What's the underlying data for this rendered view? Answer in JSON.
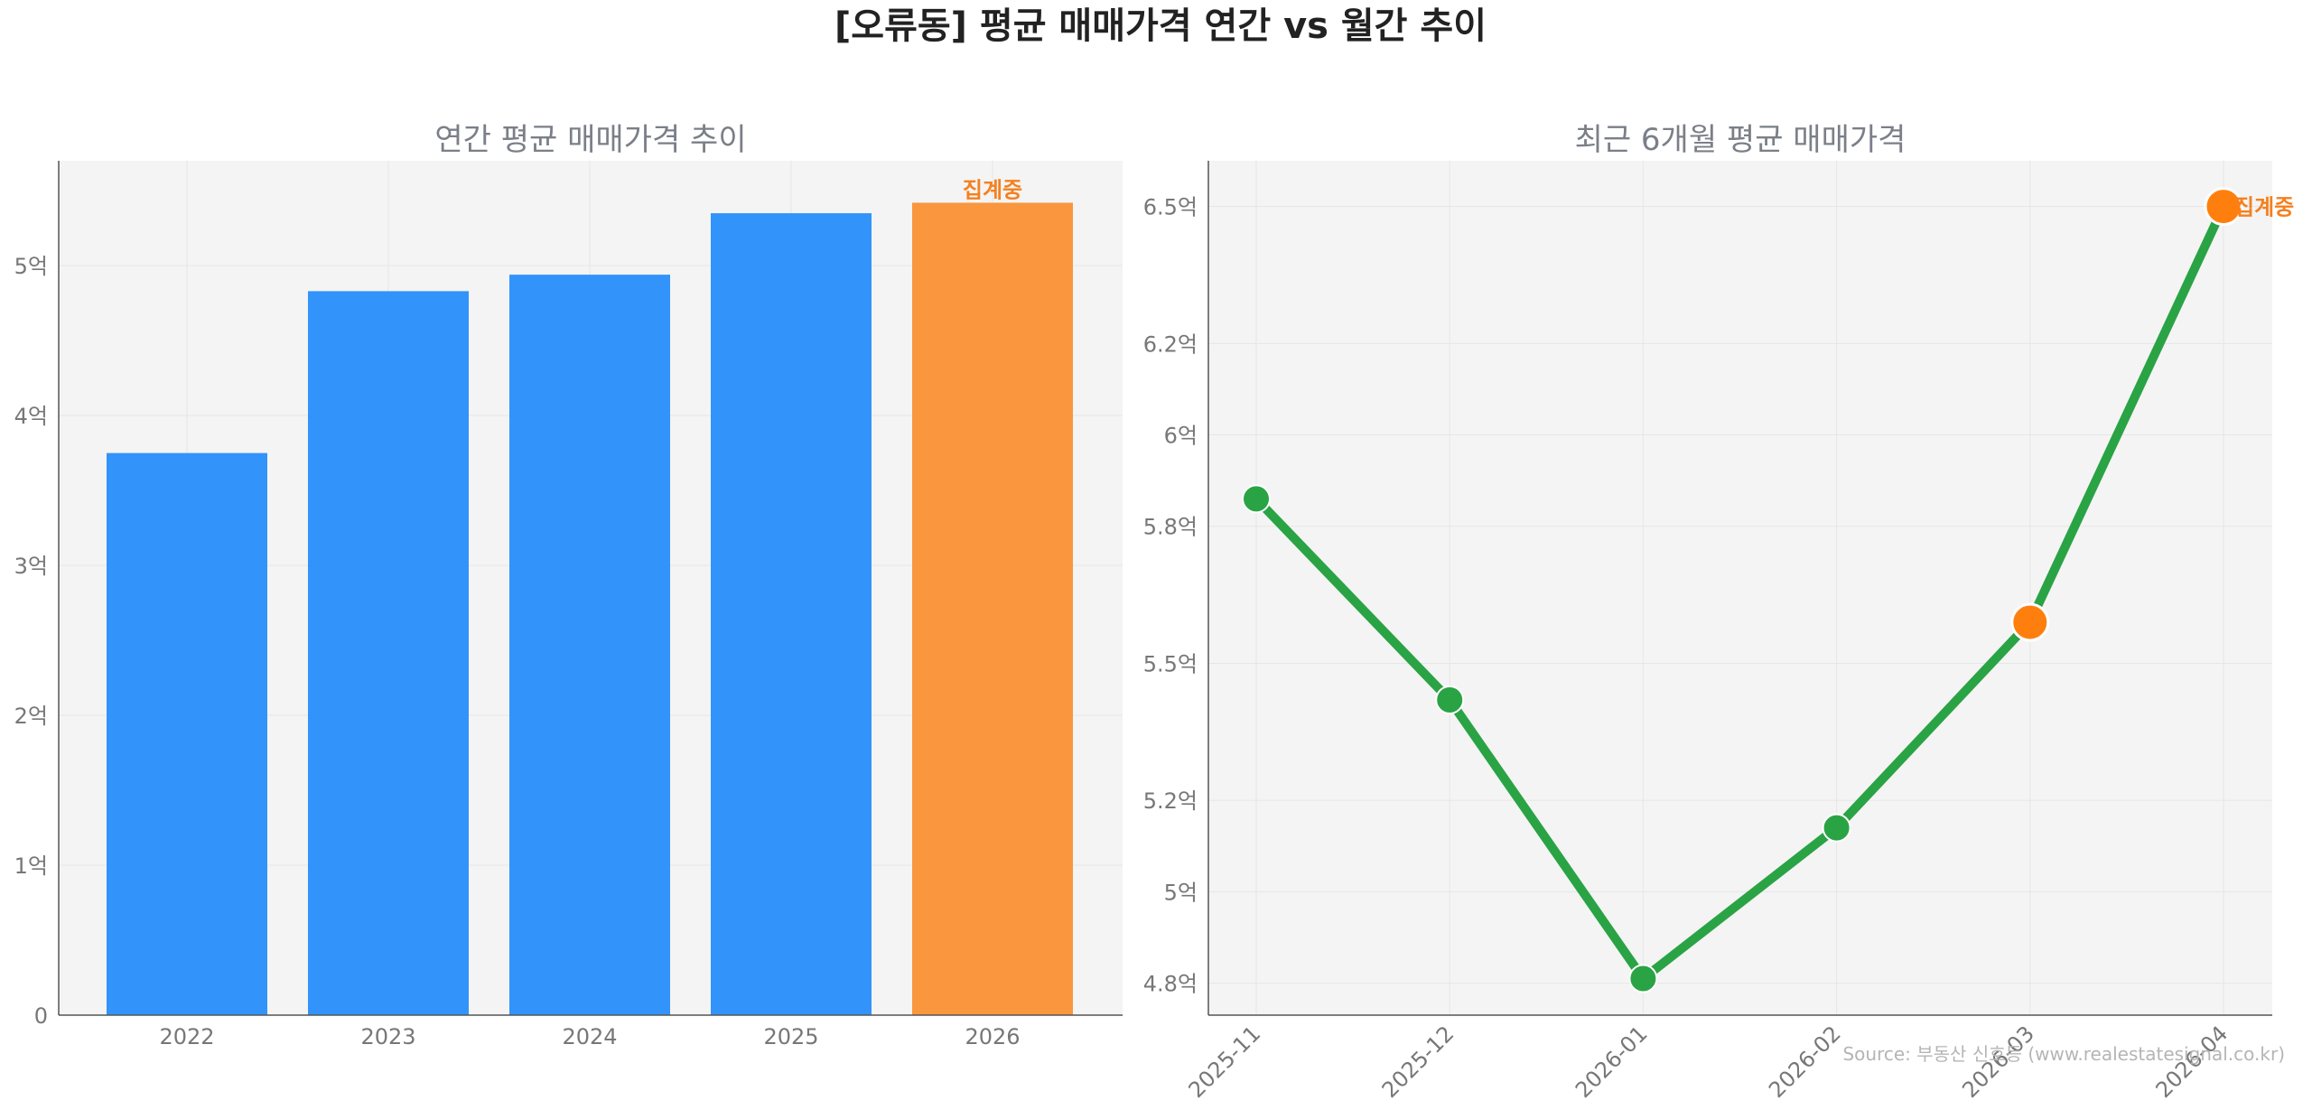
{
  "title": "[오류동] 평균 매매가격 연간 vs 월간 추이",
  "source": "Source: 부동산 신호등 (www.realestatesignal.co.kr)",
  "colors": {
    "bar": "#3293fb",
    "bar_partial": "#f9963e",
    "line": "#2aa345",
    "marker": "#2aa345",
    "marker_highlight": "#ff7f0e",
    "annotation": "#f4801f",
    "panel_bg": "#f4f4f4",
    "tick": "#777777",
    "subtitle": "#7a7f88",
    "title": "#222222"
  },
  "chart_data": [
    {
      "type": "bar",
      "title": "연간 평균 매매가격 추이",
      "xlabel": "",
      "ylabel": "",
      "categories": [
        "2022",
        "2023",
        "2024",
        "2025",
        "2026"
      ],
      "values": [
        3.75,
        4.83,
        4.94,
        5.35,
        5.42
      ],
      "yticks": [
        0,
        1,
        2,
        3,
        4,
        5
      ],
      "ytick_labels": [
        "0",
        "1억",
        "2억",
        "3억",
        "4억",
        "5억"
      ],
      "ylim": [
        0,
        5.7
      ],
      "partial_index": 4,
      "annotation": "집계중",
      "grid": true
    },
    {
      "type": "line",
      "title": "최근 6개월 평균 매매가격",
      "xlabel": "",
      "ylabel": "",
      "x": [
        "2025-11",
        "2025-12",
        "2026-01",
        "2026-02",
        "2026-03",
        "2026-04"
      ],
      "values": [
        5.86,
        5.42,
        4.81,
        5.14,
        5.59,
        6.5
      ],
      "highlight_indices": [
        4,
        5
      ],
      "yticks": [
        4.8,
        5.0,
        5.2,
        5.5,
        5.8,
        6.0,
        6.2,
        6.5
      ],
      "ytick_labels": [
        "4.8억",
        "5억",
        "5.2억",
        "5.5억",
        "5.8억",
        "6억",
        "6.2억",
        "6.5억"
      ],
      "ylim": [
        4.73,
        6.6
      ],
      "annotation": "집계중",
      "grid": true
    }
  ]
}
